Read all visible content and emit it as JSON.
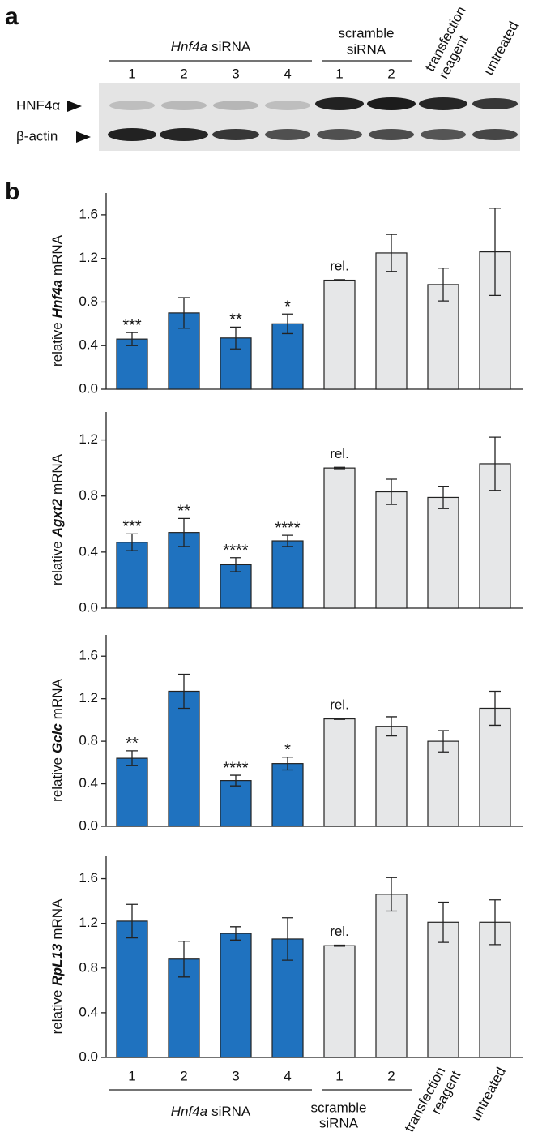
{
  "panels": [
    "a",
    "b"
  ],
  "blot": {
    "bands": [
      "HNF4α",
      "β-actin"
    ],
    "lanes": [
      "1",
      "2",
      "3",
      "4",
      "1",
      "2",
      "transfection reagent",
      "untreated"
    ],
    "group1": {
      "gene": "Hnf4a",
      "text": "siRNA"
    },
    "group2": [
      "scramble",
      "siRNA"
    ]
  },
  "chart_data": [
    {
      "type": "bar",
      "ylabel": {
        "pre": "relative",
        "gene": "Hnf4a",
        "post": "mRNA"
      },
      "ylim": [
        0,
        1.8
      ],
      "yticks": [
        {
          "value": 0,
          "label": "0.0"
        },
        0.4,
        0.8,
        1.2,
        1.6
      ],
      "values": [
        0.46,
        0.7,
        0.47,
        0.6,
        1.0,
        1.25,
        0.96,
        1.26
      ],
      "errors": [
        0.06,
        0.14,
        0.1,
        0.09,
        0.005,
        0.17,
        0.15,
        0.4
      ],
      "annotations": [
        "***",
        null,
        "**",
        "*",
        "rel.",
        null,
        null,
        null
      ],
      "colors": [
        "#1f72bf",
        "#1f72bf",
        "#1f72bf",
        "#1f72bf",
        "#e6e7e8",
        "#e6e7e8",
        "#e6e7e8",
        "#e6e7e8"
      ]
    },
    {
      "type": "bar",
      "ylabel": {
        "pre": "relative",
        "gene": "Agxt2",
        "post": "mRNA"
      },
      "ylim": [
        0,
        1.4
      ],
      "yticks": [
        {
          "value": 0,
          "label": "0.0"
        },
        0.4,
        0.8,
        1.2
      ],
      "values": [
        0.47,
        0.54,
        0.31,
        0.48,
        1.0,
        0.83,
        0.79,
        1.03
      ],
      "errors": [
        0.06,
        0.1,
        0.05,
        0.04,
        0.005,
        0.09,
        0.08,
        0.19
      ],
      "annotations": [
        "***",
        "**",
        "****",
        "****",
        "rel.",
        null,
        null,
        null
      ],
      "colors": [
        "#1f72bf",
        "#1f72bf",
        "#1f72bf",
        "#1f72bf",
        "#e6e7e8",
        "#e6e7e8",
        "#e6e7e8",
        "#e6e7e8"
      ]
    },
    {
      "type": "bar",
      "ylabel": {
        "pre": "relative",
        "gene": "Gclc",
        "post": "mRNA"
      },
      "ylim": [
        0,
        1.8
      ],
      "yticks": [
        {
          "value": 0,
          "label": "0.0"
        },
        0.4,
        0.8,
        1.2,
        1.6
      ],
      "values": [
        0.64,
        1.27,
        0.43,
        0.59,
        1.01,
        0.94,
        0.8,
        1.11
      ],
      "errors": [
        0.07,
        0.16,
        0.05,
        0.06,
        0.005,
        0.09,
        0.1,
        0.16
      ],
      "annotations": [
        "**",
        null,
        "****",
        "*",
        "rel.",
        null,
        null,
        null
      ],
      "colors": [
        "#1f72bf",
        "#1f72bf",
        "#1f72bf",
        "#1f72bf",
        "#e6e7e8",
        "#e6e7e8",
        "#e6e7e8",
        "#e6e7e8"
      ]
    },
    {
      "type": "bar",
      "ylabel": {
        "pre": "relative",
        "gene": "RpL13",
        "post": "mRNA"
      },
      "ylim": [
        0,
        1.8
      ],
      "yticks": [
        {
          "value": 0,
          "label": "0.0"
        },
        0.4,
        0.8,
        1.2,
        1.6
      ],
      "categories": [
        "1",
        "2",
        "3",
        "4",
        "1",
        "2",
        "transfection reagent",
        "untreated"
      ],
      "group1": {
        "gene": "Hnf4a",
        "text": "siRNA"
      },
      "group2": [
        "scramble",
        "siRNA"
      ],
      "values": [
        1.22,
        0.88,
        1.11,
        1.06,
        1.0,
        1.46,
        1.21,
        1.21
      ],
      "errors": [
        0.15,
        0.16,
        0.06,
        0.19,
        0.005,
        0.15,
        0.18,
        0.2
      ],
      "annotations": [
        null,
        null,
        null,
        null,
        "rel.",
        null,
        null,
        null
      ],
      "colors": [
        "#1f72bf",
        "#1f72bf",
        "#1f72bf",
        "#1f72bf",
        "#e6e7e8",
        "#e6e7e8",
        "#e6e7e8",
        "#e6e7e8"
      ]
    }
  ]
}
